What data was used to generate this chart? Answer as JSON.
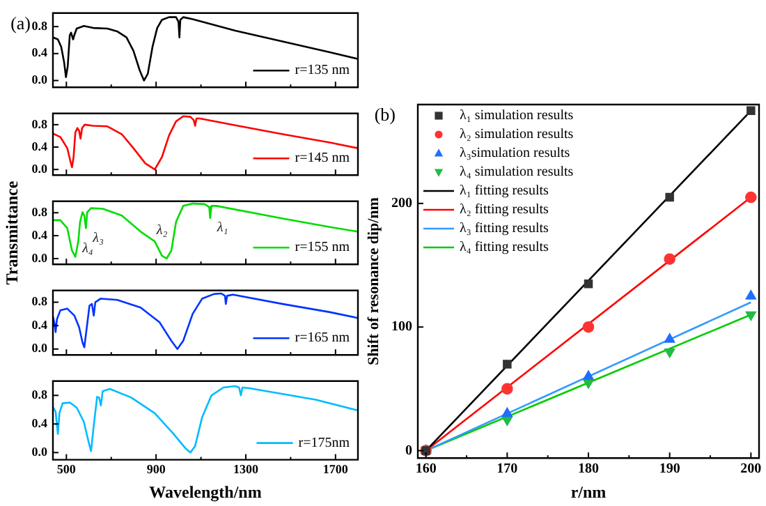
{
  "chart_data": [
    {
      "type": "line",
      "annotations": [
        "(a)"
      ],
      "xlim": [
        440,
        1800
      ],
      "ylim": [
        -0.1,
        1.0
      ],
      "xticks": [
        500,
        {
          "value": 700,
          "label": null
        },
        900,
        {
          "value": 1100,
          "label": null
        },
        1300,
        {
          "value": 1500,
          "label": null
        },
        1700
      ],
      "yticks": [
        {
          "value": 0,
          "label": "0.0"
        },
        {
          "value": 0.4,
          "label": "0.4"
        },
        {
          "value": 0.8,
          "label": "0.8"
        }
      ],
      "tick_labels": "y",
      "legend": "bottom right",
      "series": [
        {
          "name": "r=135 nm",
          "color": "#000000",
          "x": [
            441,
            462,
            477,
            490,
            498,
            506,
            515,
            521,
            530,
            536,
            546,
            578,
            620,
            683,
            726,
            768,
            799,
            827,
            846,
            863,
            884,
            905,
            926,
            958,
            989,
            1000,
            1004,
            1008,
            1021,
            1063,
            1253,
            1464,
            1675,
            1800
          ],
          "values": [
            0.64,
            0.61,
            0.5,
            0.27,
            0.05,
            0.21,
            0.67,
            0.71,
            0.61,
            0.68,
            0.77,
            0.81,
            0.78,
            0.77,
            0.73,
            0.64,
            0.44,
            0.15,
            0.0,
            0.1,
            0.5,
            0.78,
            0.9,
            0.94,
            0.94,
            0.87,
            0.64,
            0.9,
            0.94,
            0.91,
            0.74,
            0.58,
            0.42,
            0.32
          ]
        }
      ]
    },
    {
      "type": "line",
      "xlim": [
        440,
        1800
      ],
      "ylim": [
        -0.1,
        1.0
      ],
      "xticks": [
        500,
        {
          "value": 700,
          "label": null
        },
        900,
        {
          "value": 1100,
          "label": null
        },
        1300,
        {
          "value": 1500,
          "label": null
        },
        1700
      ],
      "yticks": [
        {
          "value": 0,
          "label": "0.0"
        },
        {
          "value": 0.4,
          "label": "0.4"
        },
        {
          "value": 0.8,
          "label": "0.8"
        }
      ],
      "tick_labels": "y",
      "legend": "bottom right",
      "series": [
        {
          "name": "r=145 nm",
          "color": "#ff0000",
          "x": [
            441,
            473,
            504,
            519,
            525,
            532,
            540,
            549,
            557,
            563,
            570,
            582,
            620,
            683,
            747,
            799,
            852,
            894,
            926,
            958,
            989,
            1021,
            1053,
            1068,
            1074,
            1080,
            1095,
            1253,
            1464,
            1675,
            1800
          ],
          "values": [
            0.64,
            0.58,
            0.38,
            0.13,
            0.04,
            0.22,
            0.66,
            0.74,
            0.69,
            0.55,
            0.74,
            0.8,
            0.78,
            0.77,
            0.63,
            0.38,
            0.11,
            0.0,
            0.22,
            0.61,
            0.86,
            0.95,
            0.94,
            0.88,
            0.78,
            0.91,
            0.91,
            0.79,
            0.63,
            0.48,
            0.38
          ]
        }
      ]
    },
    {
      "type": "line",
      "ylabel": "Transmittance",
      "annotations": [
        {
          "text": "λ₃",
          "x": 587,
          "y": 0.53
        },
        {
          "text": "λ₂",
          "x": 926,
          "y": 0.05
        },
        {
          "text": "λ₁",
          "x": 1141,
          "y": 0.71
        },
        {
          "text": "λ₄",
          "x": 540,
          "y": 0.03
        }
      ],
      "xlim": [
        440,
        1800
      ],
      "ylim": [
        -0.1,
        1.0
      ],
      "xticks": [
        500,
        {
          "value": 700,
          "label": null
        },
        900,
        {
          "value": 1100,
          "label": null
        },
        1300,
        {
          "value": 1500,
          "label": null
        },
        1700
      ],
      "yticks": [
        {
          "value": 0,
          "label": "0.0"
        },
        {
          "value": 0.4,
          "label": "0.4"
        },
        {
          "value": 0.8,
          "label": "0.8"
        }
      ],
      "tick_labels": "y",
      "legend": "bottom right",
      "series": [
        {
          "name": "r=155 nm",
          "color": "#00dd00",
          "x": [
            441,
            473,
            504,
            525,
            540,
            553,
            561,
            572,
            580,
            587,
            593,
            610,
            662,
            747,
            831,
            894,
            926,
            947,
            968,
            989,
            1021,
            1063,
            1116,
            1137,
            1141,
            1147,
            1168,
            1464,
            1675,
            1800
          ],
          "values": [
            0.67,
            0.67,
            0.53,
            0.14,
            0.03,
            0.3,
            0.64,
            0.81,
            0.75,
            0.53,
            0.81,
            0.88,
            0.87,
            0.75,
            0.47,
            0.3,
            0.05,
            0.0,
            0.14,
            0.64,
            0.92,
            0.96,
            0.95,
            0.9,
            0.71,
            0.92,
            0.92,
            0.7,
            0.55,
            0.47
          ]
        }
      ]
    },
    {
      "type": "line",
      "xlim": [
        440,
        1800
      ],
      "ylim": [
        -0.1,
        1.0
      ],
      "xticks": [
        500,
        {
          "value": 700,
          "label": null
        },
        900,
        {
          "value": 1100,
          "label": null
        },
        1300,
        {
          "value": 1500,
          "label": null
        },
        1700
      ],
      "yticks": [
        {
          "value": 0,
          "label": "0.0"
        },
        {
          "value": 0.4,
          "label": "0.4"
        },
        {
          "value": 0.8,
          "label": "0.8"
        }
      ],
      "tick_labels": "y",
      "legend": "bottom right",
      "series": [
        {
          "name": "r=165 nm",
          "color": "#0033ff",
          "x": [
            441,
            447,
            452,
            458,
            473,
            504,
            536,
            557,
            572,
            580,
            591,
            603,
            614,
            622,
            629,
            652,
            726,
            831,
            915,
            968,
            995,
            1021,
            1063,
            1105,
            1158,
            1190,
            1207,
            1211,
            1217,
            1243,
            1464,
            1675,
            1800
          ],
          "values": [
            0.55,
            0.43,
            0.29,
            0.51,
            0.66,
            0.69,
            0.57,
            0.37,
            0.11,
            0.03,
            0.37,
            0.74,
            0.77,
            0.57,
            0.8,
            0.86,
            0.84,
            0.71,
            0.46,
            0.14,
            0.0,
            0.14,
            0.6,
            0.86,
            0.94,
            0.95,
            0.91,
            0.77,
            0.91,
            0.93,
            0.77,
            0.63,
            0.53
          ]
        }
      ]
    },
    {
      "type": "line",
      "xlabel": "Wavelength/nm",
      "xlim": [
        440,
        1800
      ],
      "ylim": [
        -0.1,
        1.0
      ],
      "xticks": [
        500,
        {
          "value": 700,
          "label": null
        },
        900,
        {
          "value": 1100,
          "label": null
        },
        1300,
        {
          "value": 1500,
          "label": null
        },
        1700
      ],
      "yticks": [
        {
          "value": 0,
          "label": "0.0"
        },
        {
          "value": 0.4,
          "label": "0.4"
        },
        {
          "value": 0.8,
          "label": "0.8"
        }
      ],
      "legend": "bottom right",
      "series": [
        {
          "name": "r=175nm",
          "color": "#00bbff",
          "x": [
            441,
            452,
            462,
            469,
            483,
            515,
            546,
            578,
            599,
            610,
            620,
            637,
            646,
            654,
            662,
            694,
            789,
            894,
            978,
            1031,
            1053,
            1074,
            1105,
            1147,
            1200,
            1253,
            1270,
            1278,
            1285,
            1316,
            1612,
            1800
          ],
          "values": [
            0.63,
            0.57,
            0.26,
            0.55,
            0.69,
            0.7,
            0.63,
            0.43,
            0.15,
            0.02,
            0.32,
            0.78,
            0.77,
            0.66,
            0.86,
            0.89,
            0.77,
            0.55,
            0.26,
            0.06,
            0.0,
            0.09,
            0.49,
            0.8,
            0.91,
            0.93,
            0.91,
            0.8,
            0.91,
            0.9,
            0.74,
            0.59
          ]
        }
      ]
    },
    {
      "type": "line",
      "annotations": [
        "(b)"
      ],
      "xlabel": "r/nm",
      "ylabel": "Shift of resonance dip/nm",
      "xlim": [
        159,
        201
      ],
      "ylim": [
        -6,
        280
      ],
      "xticks": [
        160,
        {
          "value": 165,
          "label": null
        },
        170,
        {
          "value": 175,
          "label": null
        },
        180,
        {
          "value": 185,
          "label": null
        },
        190,
        {
          "value": 195,
          "label": null
        },
        200
      ],
      "yticks": [
        0,
        100,
        200
      ],
      "legend": "top left",
      "series": [
        {
          "name": "λ₁ simulation results",
          "type": "scatter",
          "marker": "square",
          "color": "#333333",
          "x": [
            160,
            170,
            180,
            190,
            200
          ],
          "values": [
            0,
            70,
            135,
            205,
            275
          ]
        },
        {
          "name": "λ₂ simulation results",
          "type": "scatter",
          "marker": "circle",
          "color": "#ff3333",
          "x": [
            160,
            170,
            180,
            190,
            200
          ],
          "values": [
            0,
            50,
            100,
            155,
            205
          ]
        },
        {
          "name": "λ₃simulation results",
          "type": "scatter",
          "marker": "triangle",
          "color": "#1f6fff",
          "x": [
            160,
            170,
            180,
            190,
            200
          ],
          "values": [
            0,
            30,
            60,
            90,
            125
          ]
        },
        {
          "name": "λ₄ simulation results",
          "type": "scatter",
          "marker": "triangle-down",
          "color": "#22bb44",
          "x": [
            160,
            170,
            180,
            190,
            200
          ],
          "values": [
            0,
            25,
            55,
            80,
            110
          ]
        },
        {
          "name": "λ₁ fitting results",
          "color": "#000000",
          "x": [
            160,
            200
          ],
          "values": [
            0,
            275
          ]
        },
        {
          "name": "λ₂ fitting results",
          "color": "#ff0000",
          "x": [
            160,
            200
          ],
          "values": [
            0,
            205
          ]
        },
        {
          "name": "λ₃ fitting results",
          "color": "#3399ff",
          "x": [
            160,
            200
          ],
          "values": [
            0,
            120
          ]
        },
        {
          "name": "λ₄ fitting results",
          "color": "#00cc00",
          "x": [
            160,
            200
          ],
          "values": [
            0,
            110
          ]
        }
      ]
    }
  ]
}
